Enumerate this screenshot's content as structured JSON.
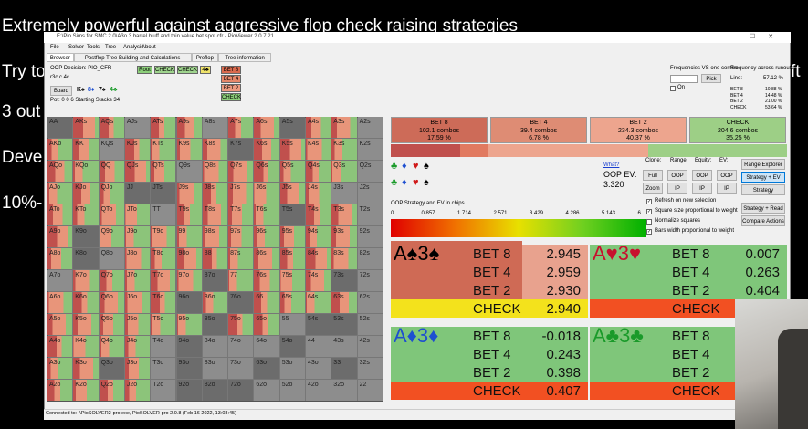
{
  "overlay": {
    "lines": [
      "Extremely powerful against aggressive flop check raising strategies",
      "Try to",
      "3 out",
      "Deve",
      "10%-"
    ],
    "right": "ft"
  },
  "window": {
    "title": "E:\\Pio Sims for SMC 2.0\\A3o 3 barrel bluff and thin value bet spot.cfr - PioViewer 2.0.7.21",
    "menu": [
      "File",
      "Solver",
      "Tools",
      "Tree",
      "Analysis",
      "About"
    ],
    "tabs": [
      "Browser",
      "Postflop Tree Building and Calculations",
      "Preflop",
      "Tree information"
    ],
    "status": "Connected to: .\\PioSOLVER2-pro.exe, PioSOLVER-pro 2.0.8 (Feb 16 2022, 13:03:45)"
  },
  "node": {
    "decision": "OOP Decision:  PIO_CFR",
    "board_text": "r3c c 4c",
    "board_button": "Board",
    "cards": [
      {
        "text": "K♠",
        "color": "#000000"
      },
      {
        "text": "8♦",
        "color": "#1e4fd0"
      },
      {
        "text": "7♠",
        "color": "#000000"
      },
      {
        "text": "4♣",
        "color": "#1a9a2a"
      }
    ],
    "pot": "Pot: 0 0 6 Starting Stacks 34",
    "path": [
      "Root",
      "CHECK",
      "CHECK",
      "4♣"
    ],
    "options": [
      "BET 8",
      "BET 4",
      "BET 2",
      "CHECK"
    ]
  },
  "frequencies": {
    "vs_combo": "Frequencies VS one combo",
    "pick": "Pick",
    "on": "On",
    "across": "Frequency across runouts:",
    "line_label": "Line:",
    "line_value": "57.12 %",
    "rows": [
      {
        "action": "BET 8",
        "value": "10.88 %"
      },
      {
        "action": "BET 4",
        "value": "14.48 %"
      },
      {
        "action": "BET 2",
        "value": "21.00 %"
      },
      {
        "action": "CHECK",
        "value": "53.64 %"
      }
    ]
  },
  "hands": [
    [
      "AA",
      "AKs",
      "AQs",
      "AJs",
      "ATs",
      "A9s",
      "A8s",
      "A7s",
      "A6s",
      "A5s",
      "A4s",
      "A3s",
      "A2s"
    ],
    [
      "AKo",
      "KK",
      "KQs",
      "KJs",
      "KTs",
      "K9s",
      "K8s",
      "K7s",
      "K6s",
      "K5s",
      "K4s",
      "K3s",
      "K2s"
    ],
    [
      "AQo",
      "KQo",
      "QQ",
      "QJs",
      "QTs",
      "Q9s",
      "Q8s",
      "Q7s",
      "Q6s",
      "Q5s",
      "Q4s",
      "Q3s",
      "Q2s"
    ],
    [
      "AJo",
      "KJo",
      "QJo",
      "JJ",
      "JTs",
      "J9s",
      "J8s",
      "J7s",
      "J6s",
      "J5s",
      "J4s",
      "J3s",
      "J2s"
    ],
    [
      "ATo",
      "KTo",
      "QTo",
      "JTo",
      "TT",
      "T9s",
      "T8s",
      "T7s",
      "T6s",
      "T5s",
      "T4s",
      "T3s",
      "T2s"
    ],
    [
      "A9o",
      "K9o",
      "Q9o",
      "J9o",
      "T9o",
      "99",
      "98s",
      "97s",
      "96s",
      "95s",
      "94s",
      "93s",
      "92s"
    ],
    [
      "A8o",
      "K8o",
      "Q8o",
      "J8o",
      "T8o",
      "98o",
      "88",
      "87s",
      "86s",
      "85s",
      "84s",
      "83s",
      "82s"
    ],
    [
      "A7o",
      "K7o",
      "Q7o",
      "J7o",
      "T7o",
      "97o",
      "87o",
      "77",
      "76s",
      "75s",
      "74s",
      "73s",
      "72s"
    ],
    [
      "A6o",
      "K6o",
      "Q6o",
      "J6o",
      "T6o",
      "96o",
      "86o",
      "76o",
      "66",
      "65s",
      "64s",
      "63s",
      "62s"
    ],
    [
      "A5o",
      "K5o",
      "Q5o",
      "J5o",
      "T5o",
      "95o",
      "85o",
      "75o",
      "65o",
      "55",
      "54s",
      "53s",
      "52s"
    ],
    [
      "A4o",
      "K4o",
      "Q4o",
      "J4o",
      "T4o",
      "94o",
      "84o",
      "74o",
      "64o",
      "54o",
      "44",
      "43s",
      "42s"
    ],
    [
      "A3o",
      "K3o",
      "Q3o",
      "J3o",
      "T3o",
      "93o",
      "83o",
      "73o",
      "63o",
      "53o",
      "43o",
      "33",
      "32s"
    ],
    [
      "A2o",
      "K2o",
      "Q2o",
      "J2o",
      "T2o",
      "92o",
      "82o",
      "72o",
      "62o",
      "52o",
      "42o",
      "32o",
      "22"
    ]
  ],
  "summary": [
    {
      "action": "BET 8",
      "combos": "102.1 combos",
      "pct": "17.59 %",
      "color": "#cd6b58"
    },
    {
      "action": "BET 4",
      "combos": "39.4 combos",
      "pct": "6.78 %",
      "color": "#de8c74"
    },
    {
      "action": "BET 2",
      "combos": "234.3 combos",
      "pct": "40.37 %",
      "color": "#eda58e"
    },
    {
      "action": "CHECK",
      "combos": "204.6 combos",
      "pct": "35.25 %",
      "color": "#9dcf86"
    }
  ],
  "controls": {
    "suits": [
      {
        "text": "♣",
        "color": "#1a9a2a"
      },
      {
        "text": "♦",
        "color": "#1e4fd0"
      },
      {
        "text": "♥",
        "color": "#d01a1a"
      },
      {
        "text": "♠",
        "color": "#000000"
      }
    ],
    "what": "What?",
    "ev_label": "OOP EV:",
    "ev_value": "3.320",
    "headers": [
      "Clone:",
      "Range:",
      "Equity:",
      "EV:"
    ],
    "buttons_top": [
      "Full",
      "OOP",
      "OOP",
      "OOP"
    ],
    "buttons_bottom": [
      "Zoom",
      "IP",
      "IP",
      "IP"
    ],
    "checks": [
      "Refresh on new selection",
      "Square size proportional to weight",
      "Normalize squares",
      "Bars width proportional to weight"
    ],
    "right_buttons": [
      "Range Explorer",
      "Strategy + EV",
      "Strategy",
      "Strategy + Read",
      "Compare Actions"
    ]
  },
  "scale": {
    "title": "OOP Strategy and EV in chips",
    "ticks": [
      "0",
      "0.857",
      "1.714",
      "2.571",
      "3.429",
      "4.286",
      "5.143",
      "6"
    ]
  },
  "combos": [
    {
      "hand": "A♠3♠",
      "color": "#000000",
      "rows": [
        {
          "action": "BET 8",
          "value": "2.945"
        },
        {
          "action": "BET 4",
          "value": "2.959"
        },
        {
          "action": "BET 2",
          "value": "2.930"
        },
        {
          "action": "CHECK",
          "value": "2.940"
        }
      ]
    },
    {
      "hand": "A♥3♥",
      "color": "#c8102e",
      "rows": [
        {
          "action": "BET 8",
          "value": "0.007"
        },
        {
          "action": "BET 4",
          "value": "0.263"
        },
        {
          "action": "BET 2",
          "value": "0.404"
        },
        {
          "action": "CHECK"
        }
      ]
    },
    {
      "hand": "A♦3♦",
      "color": "#1e4fd0",
      "rows": [
        {
          "action": "BET 8",
          "value": "-0.018"
        },
        {
          "action": "BET 4",
          "value": "0.243"
        },
        {
          "action": "BET 2",
          "value": "0.398"
        },
        {
          "action": "CHECK",
          "value": "0.407"
        }
      ]
    },
    {
      "hand": "A♣3♣",
      "color": "#1a9a2a",
      "rows": [
        {
          "action": "BET 8"
        },
        {
          "action": "BET 4"
        },
        {
          "action": "BET 2"
        },
        {
          "action": "CHECK"
        }
      ]
    }
  ]
}
